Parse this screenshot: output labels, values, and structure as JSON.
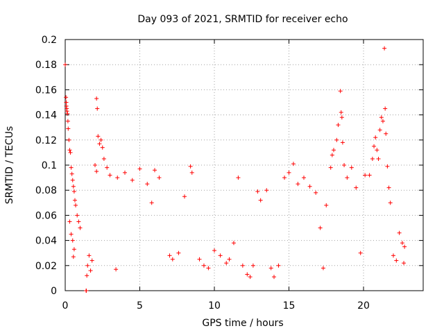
{
  "chart_data": {
    "type": "scatter",
    "title": "Day 093 of 2021, SRMTID for receiver echo",
    "xlabel": "GPS time / hours",
    "ylabel": "SRMTID / TECUs",
    "xlim": [
      0,
      24
    ],
    "ylim": [
      0,
      0.2
    ],
    "xticks": [
      0,
      5,
      10,
      15,
      20
    ],
    "yticks": [
      0,
      0.02,
      0.04,
      0.06,
      0.08,
      0.1,
      0.12,
      0.14,
      0.16,
      0.18,
      0.2
    ],
    "xtick_labels": [
      "0",
      "5",
      "10",
      "15",
      "20"
    ],
    "ytick_labels": [
      "0",
      "0.02",
      "0.04",
      "0.06",
      "0.08",
      "0.1",
      "0.12",
      "0.14",
      "0.16",
      "0.18",
      "0.2"
    ],
    "grid": true,
    "marker": "+",
    "color": "#ff0000",
    "series": [
      {
        "name": "SRMTID",
        "points": [
          [
            0.0,
            0.18
          ],
          [
            0.05,
            0.154
          ],
          [
            0.07,
            0.15
          ],
          [
            0.08,
            0.147
          ],
          [
            0.1,
            0.145
          ],
          [
            0.12,
            0.143
          ],
          [
            0.15,
            0.141
          ],
          [
            0.18,
            0.135
          ],
          [
            0.2,
            0.129
          ],
          [
            0.25,
            0.12
          ],
          [
            0.3,
            0.112
          ],
          [
            0.35,
            0.11
          ],
          [
            0.4,
            0.098
          ],
          [
            0.45,
            0.093
          ],
          [
            0.5,
            0.088
          ],
          [
            0.55,
            0.083
          ],
          [
            0.6,
            0.079
          ],
          [
            0.65,
            0.072
          ],
          [
            0.7,
            0.068
          ],
          [
            0.8,
            0.06
          ],
          [
            0.9,
            0.055
          ],
          [
            1.0,
            0.05
          ],
          [
            0.3,
            0.055
          ],
          [
            0.4,
            0.045
          ],
          [
            0.5,
            0.04
          ],
          [
            0.6,
            0.033
          ],
          [
            0.55,
            0.027
          ],
          [
            1.4,
            0.0
          ],
          [
            1.42,
            0.0
          ],
          [
            1.45,
            0.012
          ],
          [
            1.5,
            0.02
          ],
          [
            1.6,
            0.028
          ],
          [
            1.7,
            0.016
          ],
          [
            1.8,
            0.024
          ],
          [
            2.1,
            0.153
          ],
          [
            2.15,
            0.145
          ],
          [
            2.2,
            0.123
          ],
          [
            2.3,
            0.117
          ],
          [
            2.4,
            0.12
          ],
          [
            2.5,
            0.114
          ],
          [
            2.0,
            0.1
          ],
          [
            2.1,
            0.095
          ],
          [
            2.6,
            0.105
          ],
          [
            2.8,
            0.098
          ],
          [
            3.0,
            0.092
          ],
          [
            3.4,
            0.017
          ],
          [
            3.5,
            0.09
          ],
          [
            4.0,
            0.094
          ],
          [
            4.5,
            0.088
          ],
          [
            5.0,
            0.097
          ],
          [
            5.5,
            0.085
          ],
          [
            6.0,
            0.096
          ],
          [
            6.3,
            0.09
          ],
          [
            5.8,
            0.07
          ],
          [
            7.0,
            0.028
          ],
          [
            7.2,
            0.025
          ],
          [
            7.6,
            0.03
          ],
          [
            8.0,
            0.075
          ],
          [
            8.4,
            0.099
          ],
          [
            8.5,
            0.094
          ],
          [
            9.0,
            0.025
          ],
          [
            9.3,
            0.02
          ],
          [
            9.6,
            0.018
          ],
          [
            10.0,
            0.032
          ],
          [
            10.4,
            0.028
          ],
          [
            10.8,
            0.022
          ],
          [
            11.0,
            0.025
          ],
          [
            11.3,
            0.038
          ],
          [
            11.6,
            0.09
          ],
          [
            11.9,
            0.02
          ],
          [
            12.2,
            0.013
          ],
          [
            12.4,
            0.011
          ],
          [
            12.6,
            0.02
          ],
          [
            12.9,
            0.079
          ],
          [
            13.1,
            0.072
          ],
          [
            13.5,
            0.08
          ],
          [
            13.8,
            0.018
          ],
          [
            14.0,
            0.011
          ],
          [
            14.3,
            0.02
          ],
          [
            14.7,
            0.09
          ],
          [
            15.0,
            0.094
          ],
          [
            15.3,
            0.101
          ],
          [
            15.6,
            0.085
          ],
          [
            16.0,
            0.09
          ],
          [
            16.4,
            0.083
          ],
          [
            16.8,
            0.078
          ],
          [
            17.1,
            0.05
          ],
          [
            17.3,
            0.018
          ],
          [
            17.5,
            0.068
          ],
          [
            17.8,
            0.098
          ],
          [
            17.9,
            0.108
          ],
          [
            18.0,
            0.112
          ],
          [
            18.2,
            0.12
          ],
          [
            18.3,
            0.132
          ],
          [
            18.45,
            0.159
          ],
          [
            18.5,
            0.142
          ],
          [
            18.55,
            0.138
          ],
          [
            18.6,
            0.118
          ],
          [
            18.7,
            0.1
          ],
          [
            18.9,
            0.09
          ],
          [
            19.2,
            0.098
          ],
          [
            19.5,
            0.082
          ],
          [
            19.8,
            0.03
          ],
          [
            20.1,
            0.092
          ],
          [
            20.4,
            0.092
          ],
          [
            20.6,
            0.105
          ],
          [
            20.7,
            0.115
          ],
          [
            20.8,
            0.122
          ],
          [
            20.9,
            0.112
          ],
          [
            21.0,
            0.105
          ],
          [
            21.1,
            0.128
          ],
          [
            21.2,
            0.138
          ],
          [
            21.3,
            0.135
          ],
          [
            21.4,
            0.193
          ],
          [
            21.45,
            0.145
          ],
          [
            21.5,
            0.125
          ],
          [
            21.6,
            0.099
          ],
          [
            21.7,
            0.082
          ],
          [
            21.8,
            0.07
          ],
          [
            22.0,
            0.028
          ],
          [
            22.2,
            0.024
          ],
          [
            22.4,
            0.046
          ],
          [
            22.6,
            0.038
          ],
          [
            22.7,
            0.022
          ],
          [
            22.75,
            0.035
          ]
        ]
      }
    ]
  }
}
